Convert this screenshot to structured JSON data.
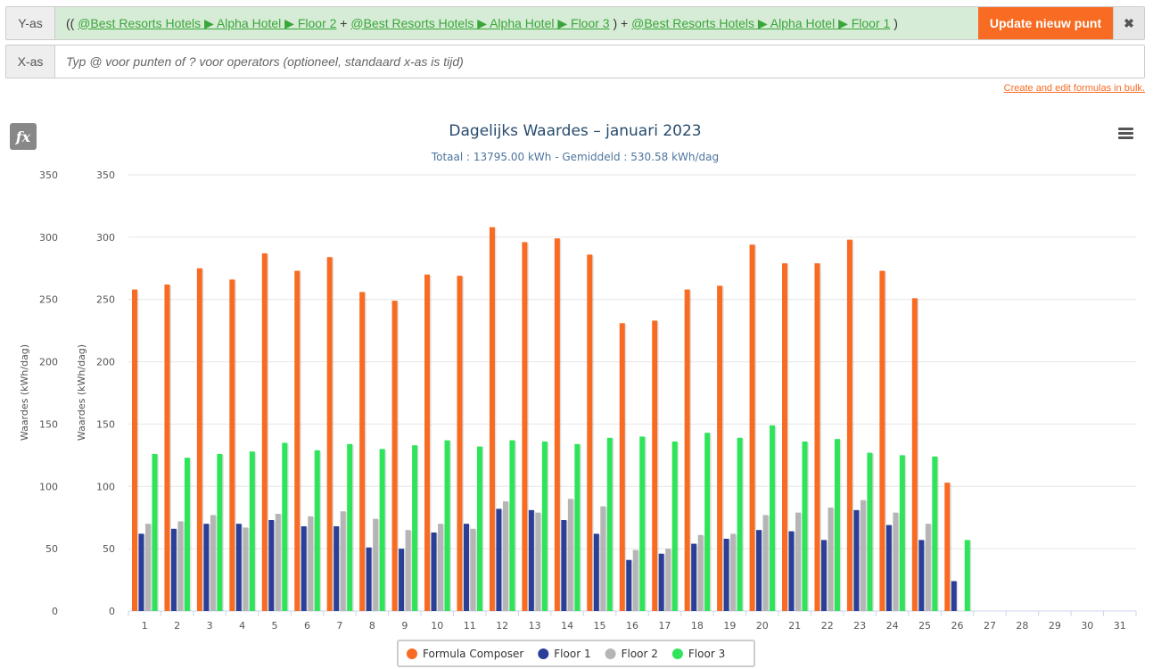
{
  "y_axis_row": {
    "label": "Y-as",
    "formula": [
      {
        "type": "text",
        "value": "(( "
      },
      {
        "type": "link",
        "value": "@Best Resorts Hotels ▶ Alpha Hotel ▶ Floor 2"
      },
      {
        "type": "text",
        "value": " + "
      },
      {
        "type": "link",
        "value": "@Best Resorts Hotels ▶ Alpha Hotel ▶ Floor 3"
      },
      {
        "type": "text",
        "value": " ) + "
      },
      {
        "type": "link",
        "value": "@Best Resorts Hotels ▶ Alpha Hotel ▶ Floor 1"
      },
      {
        "type": "text",
        "value": " )"
      }
    ],
    "update_button": "Update nieuw punt",
    "close_symbol": "✖"
  },
  "x_axis_row": {
    "label": "X-as",
    "placeholder": "Typ @ voor punten of ? voor operators (optioneel, standaard x-as is tijd)"
  },
  "bulk_link": "Create and edit formulas in bulk.",
  "fx_label": "fx",
  "colors": {
    "accent": "#f86b22",
    "formula_bg": "#d6ecd6",
    "link_green": "#3aa63a"
  },
  "chart_data": {
    "type": "bar",
    "title": "Dagelijks Waardes – januari 2023",
    "subtitle": "Totaal : 13795.00 kWh - Gemiddeld : 530.58 kWh/dag",
    "ylabel": "Waardes (kWh/dag)",
    "ylim": [
      0,
      350
    ],
    "yticks": [
      0,
      50,
      100,
      150,
      200,
      250,
      300,
      350
    ],
    "categories": [
      "1",
      "2",
      "3",
      "4",
      "5",
      "6",
      "7",
      "8",
      "9",
      "10",
      "11",
      "12",
      "13",
      "14",
      "15",
      "16",
      "17",
      "18",
      "19",
      "20",
      "21",
      "22",
      "23",
      "24",
      "25",
      "26",
      "27",
      "28",
      "29",
      "30",
      "31"
    ],
    "series": [
      {
        "name": "Formula Composer",
        "color": "#f86b22",
        "values": [
          258,
          262,
          275,
          266,
          287,
          273,
          284,
          256,
          249,
          270,
          269,
          308,
          296,
          299,
          286,
          231,
          233,
          258,
          261,
          294,
          279,
          279,
          298,
          273,
          251,
          103,
          null,
          null,
          null,
          null,
          null
        ]
      },
      {
        "name": "Floor 1",
        "color": "#2b3f99",
        "values": [
          62,
          66,
          70,
          70,
          73,
          68,
          68,
          51,
          50,
          63,
          70,
          82,
          81,
          73,
          62,
          41,
          46,
          54,
          58,
          65,
          64,
          57,
          81,
          69,
          57,
          24,
          null,
          null,
          null,
          null,
          null
        ]
      },
      {
        "name": "Floor 2",
        "color": "#b5b5b5",
        "values": [
          70,
          72,
          77,
          67,
          78,
          76,
          80,
          74,
          65,
          70,
          66,
          88,
          79,
          90,
          84,
          49,
          50,
          61,
          62,
          77,
          79,
          83,
          89,
          79,
          70,
          null,
          null,
          null,
          null,
          null,
          null
        ]
      },
      {
        "name": "Floor 3",
        "color": "#2ee55a",
        "values": [
          126,
          123,
          126,
          128,
          135,
          129,
          134,
          130,
          133,
          137,
          132,
          137,
          136,
          134,
          139,
          140,
          136,
          143,
          139,
          149,
          136,
          138,
          127,
          125,
          124,
          57,
          null,
          null,
          null,
          null,
          null
        ]
      }
    ],
    "grid": true,
    "legend_position": "bottom-center"
  }
}
